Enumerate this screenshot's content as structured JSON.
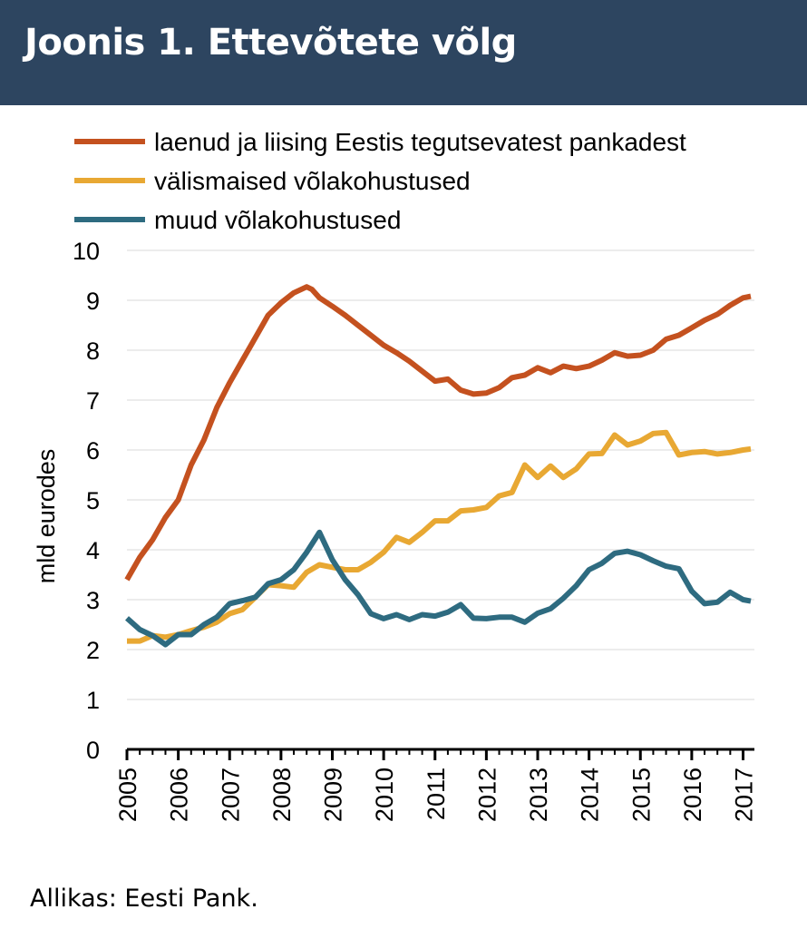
{
  "header": {
    "title": "Joonis 1. Ettevõtete võlg"
  },
  "source": "Allikas: Eesti Pank.",
  "colors": {
    "header_bg": "#2d4560",
    "series1": "#c4511f",
    "series2": "#e8a833",
    "series3": "#2e6b80"
  },
  "chart_data": {
    "type": "line",
    "title": "Joonis 1. Ettevõtete võlg",
    "ylabel": "mld eurodes",
    "xlabel": "",
    "ylim": [
      0,
      10
    ],
    "yticks": [
      "0",
      "1",
      "2",
      "3",
      "4",
      "5",
      "6",
      "7",
      "8",
      "9",
      "10"
    ],
    "xlim": [
      2005,
      2017.15
    ],
    "xticks": [
      "2005",
      "2006",
      "2007",
      "2008",
      "2009",
      "2010",
      "2011",
      "2012",
      "2013",
      "2014",
      "2015",
      "2016",
      "2017"
    ],
    "grid": "horizontal",
    "legend_position": "top",
    "series": [
      {
        "name": "laenud ja liising Eestis tegutsevatest pankadest",
        "color": "#c4511f",
        "x": [
          2005.0,
          2005.25,
          2005.5,
          2005.75,
          2006.0,
          2006.25,
          2006.5,
          2006.75,
          2007.0,
          2007.25,
          2007.5,
          2007.75,
          2008.0,
          2008.25,
          2008.5,
          2008.6,
          2008.75,
          2009.0,
          2009.25,
          2009.5,
          2009.75,
          2010.0,
          2010.25,
          2010.5,
          2010.75,
          2011.0,
          2011.25,
          2011.5,
          2011.75,
          2012.0,
          2012.25,
          2012.5,
          2012.75,
          2013.0,
          2013.25,
          2013.5,
          2013.75,
          2014.0,
          2014.25,
          2014.5,
          2014.75,
          2015.0,
          2015.25,
          2015.5,
          2015.75,
          2016.0,
          2016.25,
          2016.5,
          2016.75,
          2017.0,
          2017.15
        ],
        "values": [
          3.4,
          3.85,
          4.2,
          4.65,
          5.0,
          5.7,
          6.2,
          6.85,
          7.35,
          7.8,
          8.25,
          8.7,
          8.95,
          9.15,
          9.27,
          9.22,
          9.05,
          8.88,
          8.7,
          8.5,
          8.3,
          8.1,
          7.95,
          7.78,
          7.58,
          7.38,
          7.42,
          7.2,
          7.12,
          7.14,
          7.25,
          7.45,
          7.5,
          7.65,
          7.55,
          7.68,
          7.63,
          7.68,
          7.8,
          7.95,
          7.88,
          7.9,
          8.0,
          8.22,
          8.3,
          8.45,
          8.6,
          8.72,
          8.9,
          9.05,
          9.08
        ]
      },
      {
        "name": "välismaised võlakohustused",
        "color": "#e8a833",
        "x": [
          2005.0,
          2005.25,
          2005.5,
          2005.75,
          2006.0,
          2006.25,
          2006.5,
          2006.75,
          2007.0,
          2007.25,
          2007.5,
          2007.75,
          2008.0,
          2008.25,
          2008.5,
          2008.75,
          2009.0,
          2009.25,
          2009.5,
          2009.75,
          2010.0,
          2010.25,
          2010.5,
          2010.75,
          2011.0,
          2011.25,
          2011.5,
          2011.75,
          2012.0,
          2012.25,
          2012.5,
          2012.75,
          2013.0,
          2013.25,
          2013.5,
          2013.75,
          2014.0,
          2014.25,
          2014.5,
          2014.75,
          2015.0,
          2015.25,
          2015.5,
          2015.75,
          2016.0,
          2016.25,
          2016.5,
          2016.75,
          2017.0,
          2017.15
        ],
        "values": [
          2.17,
          2.17,
          2.28,
          2.25,
          2.3,
          2.38,
          2.45,
          2.55,
          2.72,
          2.8,
          3.05,
          3.3,
          3.28,
          3.25,
          3.55,
          3.7,
          3.65,
          3.6,
          3.6,
          3.75,
          3.95,
          4.25,
          4.15,
          4.35,
          4.58,
          4.58,
          4.78,
          4.8,
          4.85,
          5.08,
          5.15,
          5.7,
          5.45,
          5.68,
          5.45,
          5.62,
          5.92,
          5.93,
          6.3,
          6.1,
          6.18,
          6.33,
          6.35,
          5.9,
          5.95,
          5.97,
          5.92,
          5.95,
          6.0,
          6.02
        ]
      },
      {
        "name": "muud võlakohustused",
        "color": "#2e6b80",
        "x": [
          2005.0,
          2005.25,
          2005.5,
          2005.75,
          2006.0,
          2006.25,
          2006.5,
          2006.75,
          2007.0,
          2007.25,
          2007.5,
          2007.75,
          2008.0,
          2008.25,
          2008.5,
          2008.75,
          2009.0,
          2009.25,
          2009.5,
          2009.75,
          2010.0,
          2010.25,
          2010.5,
          2010.75,
          2011.0,
          2011.25,
          2011.5,
          2011.75,
          2012.0,
          2012.25,
          2012.5,
          2012.75,
          2013.0,
          2013.25,
          2013.5,
          2013.75,
          2014.0,
          2014.25,
          2014.5,
          2014.75,
          2015.0,
          2015.25,
          2015.5,
          2015.75,
          2016.0,
          2016.25,
          2016.5,
          2016.75,
          2017.0,
          2017.15
        ],
        "values": [
          2.63,
          2.4,
          2.28,
          2.1,
          2.3,
          2.3,
          2.5,
          2.65,
          2.92,
          2.98,
          3.05,
          3.32,
          3.4,
          3.6,
          3.95,
          4.35,
          3.8,
          3.4,
          3.1,
          2.72,
          2.62,
          2.7,
          2.6,
          2.7,
          2.67,
          2.75,
          2.9,
          2.63,
          2.62,
          2.65,
          2.65,
          2.55,
          2.73,
          2.82,
          3.03,
          3.28,
          3.6,
          3.73,
          3.93,
          3.97,
          3.9,
          3.78,
          3.67,
          3.62,
          3.17,
          2.92,
          2.95,
          3.15,
          3.0,
          2.97
        ]
      }
    ]
  }
}
